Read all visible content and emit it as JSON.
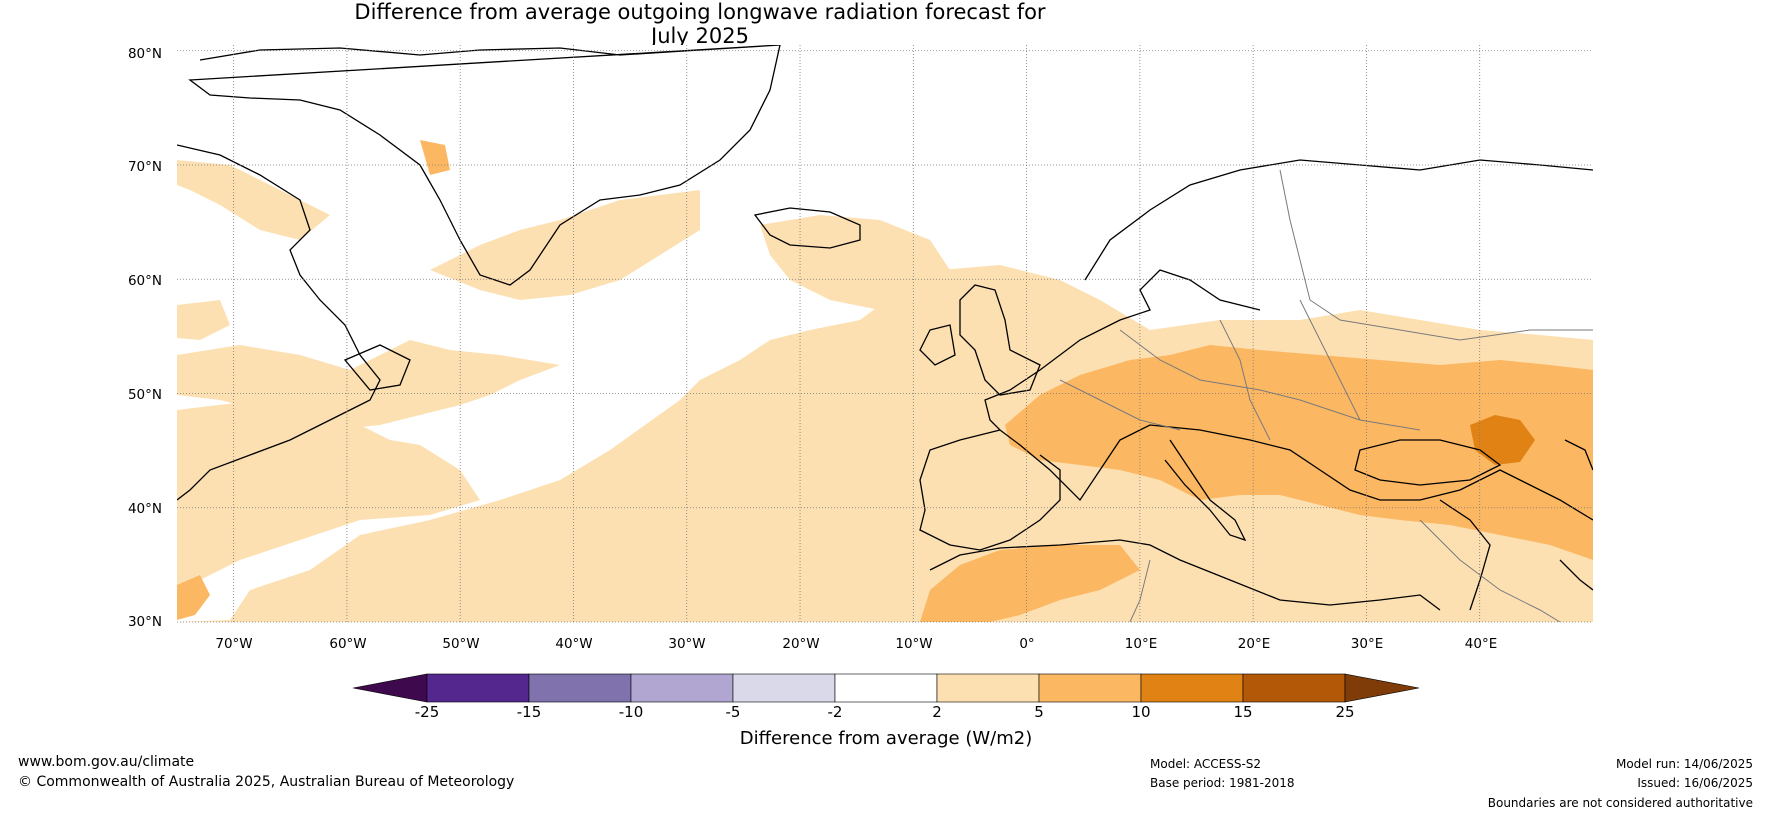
{
  "title": {
    "line1": "Difference from average outgoing longwave radiation forecast for",
    "line2": "July 2025"
  },
  "map": {
    "region": "North Atlantic and Europe",
    "projection": "equirectangular",
    "lon_range": [
      -75,
      50
    ],
    "lat_range": [
      30,
      80
    ],
    "gridlines": "dotted",
    "lat_labels": [
      "80°N",
      "70°N",
      "60°N",
      "50°N",
      "40°N",
      "30°N"
    ],
    "lon_labels": [
      "70°W",
      "60°W",
      "50°W",
      "40°W",
      "30°W",
      "20°W",
      "10°W",
      "0°",
      "10°E",
      "20°E",
      "30°E",
      "40°E"
    ],
    "field": "Difference from average outgoing longwave radiation",
    "dominant_pattern": "positive anomalies (2 to 10 W/m2) over Europe, Atlantic and North Africa; 10 to 15 W/m2 north of the Black Sea"
  },
  "colorbar": {
    "title": "Difference from average (W/m2)",
    "extend": "both",
    "ticks": [
      "-25",
      "-15",
      "-10",
      "-5",
      "-2",
      "2",
      "5",
      "10",
      "15",
      "25"
    ],
    "colors": [
      "#3f0a4d",
      "#54278f",
      "#7f72ad",
      "#b0a6d1",
      "#d9d9ea",
      "#ffffff",
      "#fde0b2",
      "#fbb762",
      "#e08214",
      "#b35806",
      "#7f3b08"
    ]
  },
  "footer": {
    "url": "www.bom.gov.au/climate",
    "copyright": "© Commonwealth of Australia 2025, Australian Bureau of Meteorology",
    "model": "Model: ACCESS-S2",
    "base_period": "Base period: 1981-2018",
    "model_run": "Model run: 14/06/2025",
    "issued": "Issued: 16/06/2025",
    "disclaimer": "Boundaries are not considered authoritative"
  }
}
